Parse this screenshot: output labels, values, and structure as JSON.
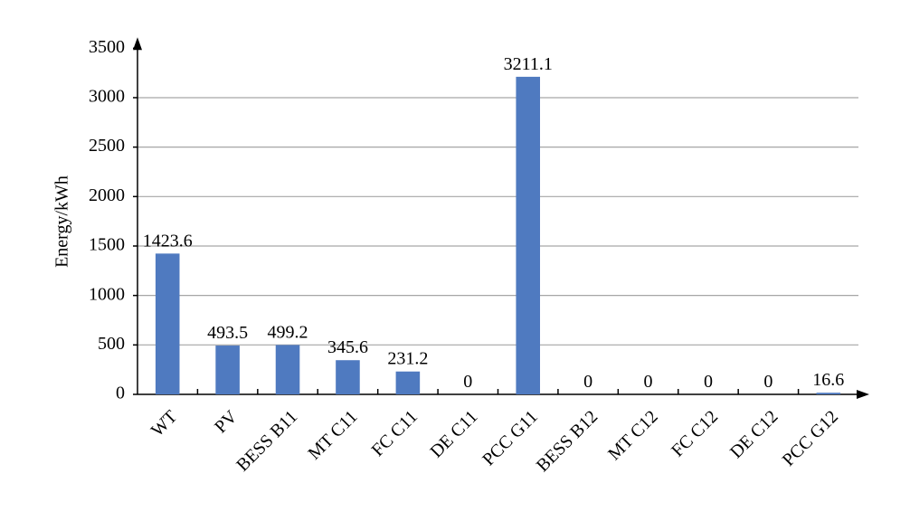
{
  "chart_data": {
    "type": "bar",
    "y_label": "Energy/kWh",
    "categories": [
      "WT",
      "PV",
      "BESS B11",
      "MT C11",
      "FC C11",
      "DE C11",
      "PCC G11",
      "BESS B12",
      "MT C12",
      "FC C12",
      "DE C12",
      "PCC G12"
    ],
    "values": [
      1423.6,
      493.5,
      499.2,
      345.6,
      231.2,
      0,
      3211.1,
      0,
      0,
      0,
      0,
      16.6
    ],
    "color": "#4f7ac0",
    "ylim": [
      0,
      3500
    ],
    "yticks": [
      0,
      500,
      1000,
      1500,
      2000,
      2500,
      3000,
      3500
    ],
    "grid": true
  }
}
